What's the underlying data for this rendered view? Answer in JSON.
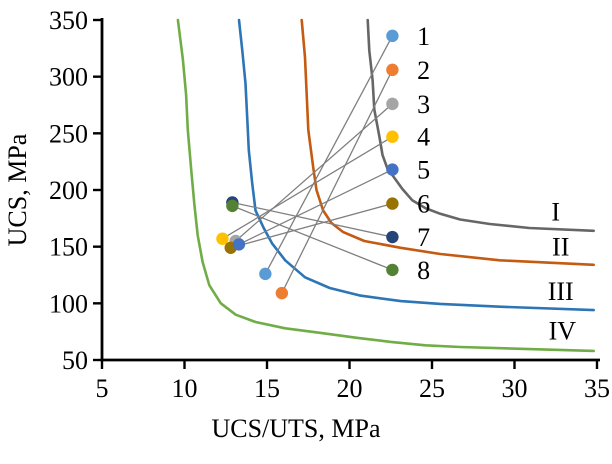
{
  "chart_data": {
    "type": "scatter",
    "title": "",
    "xlabel": "UCS/UTS, MPa",
    "ylabel": "UCS, MPa",
    "xlim": [
      5,
      35
    ],
    "ylim": [
      50,
      350
    ],
    "xticks": [
      5,
      10,
      15,
      20,
      25,
      30,
      35
    ],
    "yticks": [
      50,
      100,
      150,
      200,
      250,
      300,
      350
    ],
    "grid": false,
    "background": "#FFFFFF",
    "axis_color": "#000000",
    "curves": [
      {
        "label": "I",
        "color": "#666666",
        "label_pos": [
          32.5,
          181
        ],
        "points": [
          [
            21.1,
            350
          ],
          [
            21.2,
            323
          ],
          [
            21.4,
            297
          ],
          [
            21.5,
            271
          ],
          [
            21.8,
            248
          ],
          [
            22.0,
            231
          ],
          [
            22.3,
            219
          ],
          [
            22.7,
            211
          ],
          [
            23.2,
            201
          ],
          [
            23.8,
            191
          ],
          [
            24.6,
            184
          ],
          [
            25.5,
            179
          ],
          [
            26.7,
            174
          ],
          [
            28.5,
            170
          ],
          [
            30.9,
            166.5
          ],
          [
            34.8,
            164
          ]
        ]
      },
      {
        "label": "II",
        "color": "#C55A11",
        "label_pos": [
          32.8,
          150
        ],
        "points": [
          [
            17.1,
            350
          ],
          [
            17.3,
            317
          ],
          [
            17.4,
            286
          ],
          [
            17.5,
            253
          ],
          [
            17.8,
            220
          ],
          [
            18.0,
            200
          ],
          [
            18.4,
            182
          ],
          [
            18.9,
            171
          ],
          [
            19.6,
            163
          ],
          [
            20.9,
            155
          ],
          [
            23.1,
            149
          ],
          [
            25.5,
            143.5
          ],
          [
            29.1,
            138
          ],
          [
            34.8,
            134
          ]
        ]
      },
      {
        "label": "III",
        "color": "#2E75B6",
        "label_pos": [
          32.8,
          111
        ],
        "points": [
          [
            13.3,
            350
          ],
          [
            13.5,
            323
          ],
          [
            13.7,
            294
          ],
          [
            13.8,
            264
          ],
          [
            13.9,
            235
          ],
          [
            14.1,
            206
          ],
          [
            14.3,
            182
          ],
          [
            14.8,
            166.5
          ],
          [
            15.3,
            153
          ],
          [
            16.1,
            138
          ],
          [
            17.3,
            123
          ],
          [
            18.8,
            113.5
          ],
          [
            20.6,
            107
          ],
          [
            23.1,
            102
          ],
          [
            25.5,
            99.5
          ],
          [
            29.1,
            97
          ],
          [
            34.8,
            94
          ]
        ]
      },
      {
        "label": "IV",
        "color": "#70AD47",
        "label_pos": [
          32.9,
          76
        ],
        "points": [
          [
            9.6,
            350
          ],
          [
            9.9,
            315
          ],
          [
            10.1,
            284
          ],
          [
            10.2,
            253
          ],
          [
            10.4,
            219
          ],
          [
            10.6,
            187
          ],
          [
            10.8,
            160
          ],
          [
            11.1,
            136.5
          ],
          [
            11.5,
            116
          ],
          [
            12.2,
            100
          ],
          [
            13.1,
            90
          ],
          [
            14.3,
            83.5
          ],
          [
            16.1,
            78
          ],
          [
            18.2,
            74
          ],
          [
            20.5,
            69.5
          ],
          [
            22.5,
            66
          ],
          [
            24.6,
            63
          ],
          [
            26.7,
            61.5
          ],
          [
            34.8,
            58
          ]
        ]
      }
    ],
    "series": [
      {
        "label": "1",
        "color": "#5B9BD5",
        "x": 14.9,
        "y": 126
      },
      {
        "label": "2",
        "color": "#ED7D31",
        "x": 15.9,
        "y": 109
      },
      {
        "label": "3",
        "color": "#A5A5A5",
        "x": 13.1,
        "y": 155
      },
      {
        "label": "4",
        "color": "#FFC000",
        "x": 12.3,
        "y": 157
      },
      {
        "label": "5",
        "color": "#4472C4",
        "x": 13.3,
        "y": 152
      },
      {
        "label": "6",
        "color": "#997300",
        "x": 12.8,
        "y": 149
      },
      {
        "label": "7",
        "color": "#264478",
        "x": 12.9,
        "y": 189
      },
      {
        "label": "8",
        "color": "#548235",
        "x": 12.9,
        "y": 186
      }
    ],
    "points_draw_order": [
      "3",
      "7",
      "4",
      "6",
      "5",
      "8",
      "1",
      "2"
    ],
    "legend": {
      "position": "inside-right",
      "marker_x": 22.6,
      "label_x": 24.1,
      "entry_y": [
        336,
        306,
        276,
        247,
        218,
        188,
        158.5,
        129.5
      ],
      "connector_color": "#7F7F7F"
    }
  }
}
